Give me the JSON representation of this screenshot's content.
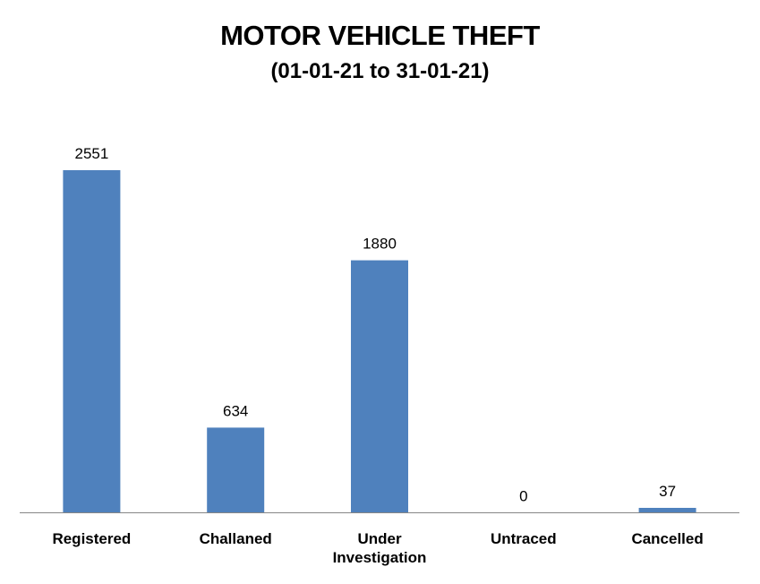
{
  "chart_data": {
    "type": "bar",
    "title": "MOTOR VEHICLE THEFT",
    "subtitle": "(01-01-21 to 31-01-21)",
    "categories": [
      "Registered",
      "Challaned",
      "Under Investigation",
      "Untraced",
      "Cancelled"
    ],
    "category_lines": [
      [
        "Registered"
      ],
      [
        "Challaned"
      ],
      [
        "Under",
        "Investigation"
      ],
      [
        "Untraced"
      ],
      [
        "Cancelled"
      ]
    ],
    "values": [
      2551,
      634,
      1880,
      0,
      37
    ],
    "data_labels": [
      "2551",
      "634",
      "1880",
      "0",
      "37"
    ],
    "xlabel": "",
    "ylabel": "",
    "ylim": [
      0,
      2551
    ],
    "grid": false,
    "legend": "none",
    "colors": {
      "bar": "#4f81bd",
      "axis": "#868686"
    }
  }
}
